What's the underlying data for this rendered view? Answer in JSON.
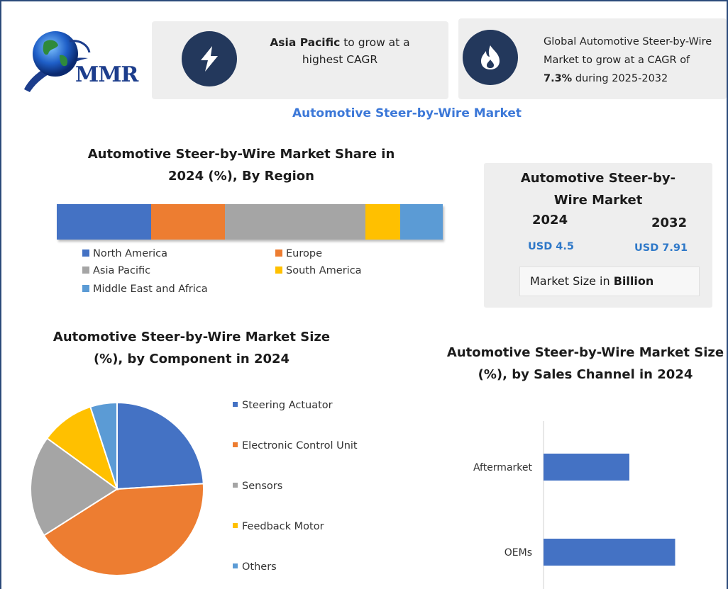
{
  "logo": {
    "text": "MMR"
  },
  "callout1": {
    "bold": "Asia Pacific",
    "rest": " to grow at a highest CAGR"
  },
  "callout2": {
    "pre": "Global Automotive Steer-by-Wire Market to grow at a CAGR of ",
    "bold": "7.3%",
    "post": " during 2025-2032"
  },
  "main_title": "Automotive Steer-by-Wire Market",
  "market_box": {
    "title": "Automotive Steer-by-Wire Market",
    "year1": "2024",
    "value1": "USD 4.5",
    "year2": "2032",
    "value2": "USD 7.91",
    "note_pre": "Market Size in ",
    "note_bold": "Billion"
  },
  "colors": {
    "blue": "#4472c4",
    "orange": "#ed7d31",
    "gray": "#a5a5a5",
    "yellow": "#ffc000",
    "lightblue": "#5b9bd5",
    "navy": "#23385c",
    "accent": "#3c78d8"
  },
  "chart_data": [
    {
      "type": "bar",
      "orientation": "horizontal-stacked",
      "title": "Automotive Steer-by-Wire Market Share in 2024 (%), By Region",
      "categories": [
        "North America",
        "Europe",
        "Asia Pacific",
        "South America",
        "Middle East and Africa"
      ],
      "values": [
        24.5,
        19,
        36.5,
        9,
        11
      ],
      "colors": [
        "#4472c4",
        "#ed7d31",
        "#a5a5a5",
        "#ffc000",
        "#5b9bd5"
      ],
      "legend": "bottom"
    },
    {
      "type": "pie",
      "title": "Automotive Steer-by-Wire  Market Size (%), by Component in 2024",
      "categories": [
        "Steering Actuator",
        "Electronic Control Unit",
        "Sensors",
        "Feedback Motor",
        "Others"
      ],
      "values": [
        24,
        42,
        19,
        10,
        5
      ],
      "colors": [
        "#4472c4",
        "#ed7d31",
        "#a5a5a5",
        "#ffc000",
        "#5b9bd5"
      ],
      "legend": "right"
    },
    {
      "type": "bar",
      "orientation": "horizontal",
      "title": "Automotive Steer-by-Wire  Market Size (%), by Sales Channel in 2024",
      "categories": [
        "Aftermarket",
        "OEMs"
      ],
      "values": [
        30,
        46
      ],
      "xlim": [
        0,
        62
      ],
      "colors": [
        "#4472c4",
        "#4472c4"
      ]
    }
  ]
}
